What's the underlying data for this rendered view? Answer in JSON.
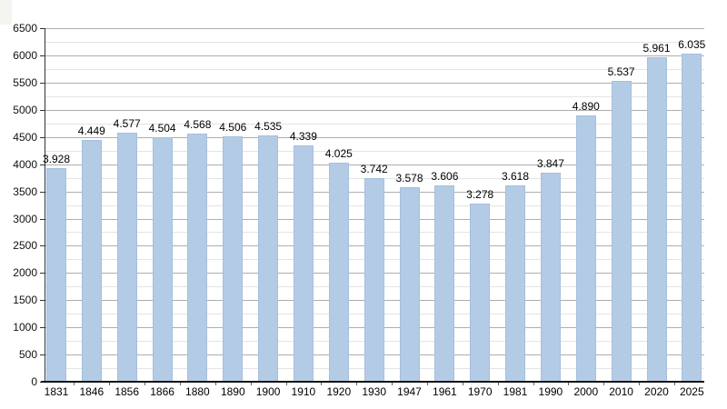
{
  "chart_data": {
    "type": "bar",
    "categories": [
      "1831",
      "1846",
      "1856",
      "1866",
      "1880",
      "1890",
      "1900",
      "1910",
      "1920",
      "1930",
      "1947",
      "1961",
      "1970",
      "1981",
      "1990",
      "2000",
      "2010",
      "2020",
      "2025"
    ],
    "values": [
      3928,
      4449,
      4577,
      4504,
      4568,
      4506,
      4535,
      4339,
      4025,
      3742,
      3578,
      3606,
      3278,
      3618,
      3847,
      4890,
      5537,
      5961,
      6035
    ],
    "value_labels": [
      "3.928",
      "4.449",
      "4.577",
      "4.504",
      "4.568",
      "4.506",
      "4.535",
      "4.339",
      "4.025",
      "3.742",
      "3.578",
      "3.606",
      "3.278",
      "3.618",
      "3.847",
      "4.890",
      "5.537",
      "5.961",
      "6.035"
    ],
    "y_ticks": [
      0,
      500,
      1000,
      1500,
      2000,
      2500,
      3000,
      3500,
      4000,
      4500,
      5000,
      5500,
      6000,
      6500
    ],
    "y_minor_step": 250,
    "ylim": [
      0,
      6500
    ],
    "xlabel": "",
    "ylabel": "",
    "grid": true,
    "legend": "none",
    "bar_color": "#b4cbe6",
    "bar_border_color": "#a5bfdc",
    "major_grid_color": "#aeaeae",
    "minor_grid_color": "#e4e4e4",
    "y_axis_color": "#333333",
    "x_axis_color": "#141414",
    "boundary_tick_color": "#666666"
  }
}
